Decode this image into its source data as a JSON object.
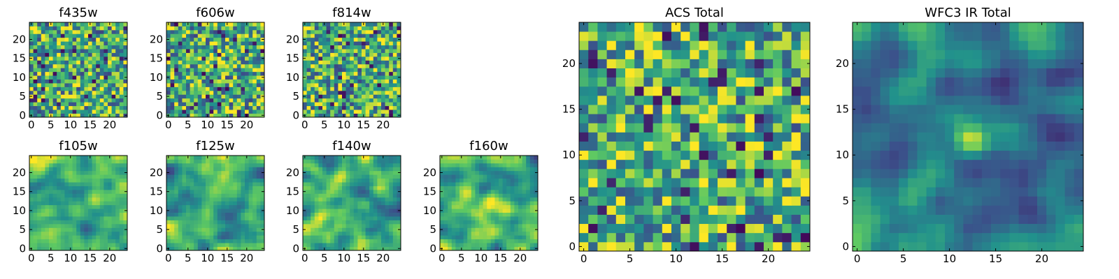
{
  "colormap": {
    "name": "viridis",
    "stops": [
      "#440154",
      "#3b528b",
      "#21918c",
      "#5ec962",
      "#fde725"
    ]
  },
  "chart_data": [
    {
      "type": "heatmap",
      "title": "f435w",
      "grid_size": 25,
      "xticks": [
        0,
        5,
        10,
        15,
        20
      ],
      "yticks": [
        0,
        5,
        10,
        15,
        20
      ],
      "xlim": [
        -0.5,
        24.5
      ],
      "ylim": [
        -0.5,
        24.5
      ],
      "grid": false,
      "value_range": [
        0,
        1
      ],
      "texture": "fine pixel noise, mostly green-yellow with scattered dark purple pixels",
      "mean": 0.63,
      "contrast": 0.42,
      "blob": null
    },
    {
      "type": "heatmap",
      "title": "f606w",
      "grid_size": 25,
      "xticks": [
        0,
        5,
        10,
        15,
        20
      ],
      "yticks": [
        0,
        5,
        10,
        15,
        20
      ],
      "xlim": [
        -0.5,
        24.5
      ],
      "ylim": [
        -0.5,
        24.5
      ],
      "grid": false,
      "value_range": [
        0,
        1
      ],
      "texture": "fine pixel noise, mostly green-yellow with scattered dark purple pixels",
      "mean": 0.63,
      "contrast": 0.42,
      "blob": null
    },
    {
      "type": "heatmap",
      "title": "f814w",
      "grid_size": 25,
      "xticks": [
        0,
        5,
        10,
        15,
        20
      ],
      "yticks": [
        0,
        5,
        10,
        15,
        20
      ],
      "xlim": [
        -0.5,
        24.5
      ],
      "ylim": [
        -0.5,
        24.5
      ],
      "grid": false,
      "value_range": [
        0,
        1
      ],
      "texture": "fine pixel noise, mostly green-yellow with scattered dark purple pixels",
      "mean": 0.63,
      "contrast": 0.42,
      "blob": null
    },
    {
      "type": "heatmap",
      "title": "f105w",
      "grid_size": 25,
      "xticks": [
        0,
        5,
        10,
        15,
        20
      ],
      "yticks": [
        0,
        5,
        10,
        15,
        20
      ],
      "xlim": [
        -0.5,
        24.5
      ],
      "ylim": [
        -0.5,
        24.5
      ],
      "grid": false,
      "value_range": [
        0,
        1
      ],
      "texture": "smooth correlated noise, yellow-green",
      "mean": 0.66,
      "contrast": 0.38,
      "blob": null
    },
    {
      "type": "heatmap",
      "title": "f125w",
      "grid_size": 25,
      "xticks": [
        0,
        5,
        10,
        15,
        20
      ],
      "yticks": [
        0,
        5,
        10,
        15,
        20
      ],
      "xlim": [
        -0.5,
        24.5
      ],
      "ylim": [
        -0.5,
        24.5
      ],
      "grid": false,
      "value_range": [
        0,
        1
      ],
      "texture": "smooth correlated noise, green",
      "mean": 0.6,
      "contrast": 0.4,
      "blob": null
    },
    {
      "type": "heatmap",
      "title": "f140w",
      "grid_size": 25,
      "xticks": [
        0,
        5,
        10,
        15,
        20
      ],
      "yticks": [
        0,
        5,
        10,
        15,
        20
      ],
      "xlim": [
        -0.5,
        24.5
      ],
      "ylim": [
        -0.5,
        24.5
      ],
      "grid": false,
      "value_range": [
        0,
        1
      ],
      "texture": "smooth correlated noise, green",
      "mean": 0.6,
      "contrast": 0.4,
      "blob": null
    },
    {
      "type": "heatmap",
      "title": "f160w",
      "grid_size": 25,
      "xticks": [
        0,
        5,
        10,
        15,
        20
      ],
      "yticks": [
        0,
        5,
        10,
        15,
        20
      ],
      "xlim": [
        -0.5,
        24.5
      ],
      "ylim": [
        -0.5,
        24.5
      ],
      "grid": false,
      "value_range": [
        0,
        1
      ],
      "texture": "smooth correlated noise with bright source near center",
      "mean": 0.6,
      "contrast": 0.4,
      "blob": {
        "x": 12.5,
        "y": 11.5,
        "sigma": 2.2,
        "amplitude": 0.45
      }
    },
    {
      "type": "heatmap",
      "title": "ACS Total",
      "grid_size": 25,
      "xticks": [
        0,
        5,
        10,
        15,
        20
      ],
      "yticks": [
        0,
        5,
        10,
        15,
        20
      ],
      "xlim": [
        -0.5,
        24.5
      ],
      "ylim": [
        -0.5,
        24.5
      ],
      "grid": false,
      "value_range": [
        0,
        1
      ],
      "texture": "pixel noise, green-yellow with scattered dark purple pixels",
      "mean": 0.64,
      "contrast": 0.4,
      "blob": null
    },
    {
      "type": "heatmap",
      "title": "WFC3 IR Total",
      "grid_size": 25,
      "xticks": [
        0,
        5,
        10,
        15,
        20
      ],
      "yticks": [
        0,
        5,
        10,
        15,
        20
      ],
      "xlim": [
        -0.5,
        24.5
      ],
      "ylim": [
        -0.5,
        24.5
      ],
      "grid": false,
      "value_range": [
        0,
        1
      ],
      "texture": "teal-green noise with bright yellow source near center",
      "mean": 0.45,
      "contrast": 0.3,
      "blob": {
        "x": 12.5,
        "y": 11.5,
        "sigma": 1.3,
        "amplitude": 0.65
      }
    }
  ]
}
